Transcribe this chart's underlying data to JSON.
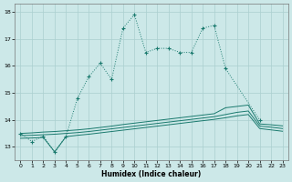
{
  "xlabel": "Humidex (Indice chaleur)",
  "bg_color": "#cce8e8",
  "grid_color": "#aacfcf",
  "line_color": "#1a7a6e",
  "xlim": [
    -0.5,
    23.5
  ],
  "ylim": [
    12.5,
    18.3
  ],
  "yticks": [
    13,
    14,
    15,
    16,
    17,
    18
  ],
  "xticks": [
    0,
    1,
    2,
    3,
    4,
    5,
    6,
    7,
    8,
    9,
    10,
    11,
    12,
    13,
    14,
    15,
    16,
    17,
    18,
    19,
    20,
    21,
    22,
    23
  ],
  "main_x": [
    0,
    1,
    2,
    3,
    4,
    5,
    6,
    7,
    8,
    9,
    10,
    11,
    12,
    13,
    14,
    15,
    16,
    17,
    18,
    21
  ],
  "main_y": [
    13.5,
    13.2,
    13.4,
    12.8,
    13.4,
    14.8,
    15.6,
    16.1,
    15.5,
    17.4,
    17.9,
    16.5,
    16.65,
    16.65,
    16.5,
    16.5,
    17.4,
    17.5,
    15.9,
    14.0
  ],
  "upper_x": [
    0,
    1,
    2,
    3,
    4,
    5,
    6,
    7,
    8,
    9,
    10,
    11,
    12,
    13,
    14,
    15,
    16,
    17,
    18,
    19,
    20,
    21,
    22,
    23
  ],
  "upper_y": [
    13.5,
    13.52,
    13.55,
    13.57,
    13.6,
    13.63,
    13.67,
    13.72,
    13.77,
    13.83,
    13.88,
    13.93,
    13.98,
    14.03,
    14.08,
    14.13,
    14.18,
    14.23,
    14.45,
    14.5,
    14.55,
    13.85,
    13.82,
    13.78
  ],
  "mid_x": [
    0,
    1,
    2,
    3,
    4,
    5,
    6,
    7,
    8,
    9,
    10,
    11,
    12,
    13,
    14,
    15,
    16,
    17,
    18,
    19,
    20,
    21,
    22,
    23
  ],
  "mid_y": [
    13.42,
    13.43,
    13.45,
    13.47,
    13.5,
    13.53,
    13.57,
    13.62,
    13.67,
    13.72,
    13.77,
    13.82,
    13.87,
    13.92,
    13.97,
    14.02,
    14.07,
    14.12,
    14.2,
    14.28,
    14.33,
    13.77,
    13.73,
    13.68
  ],
  "lower_x": [
    0,
    1,
    2,
    3,
    4,
    5,
    6,
    7,
    8,
    9,
    10,
    11,
    12,
    13,
    14,
    15,
    16,
    17,
    18,
    19,
    20,
    21,
    22,
    23
  ],
  "lower_y": [
    13.32,
    13.33,
    13.35,
    12.82,
    13.38,
    13.43,
    13.47,
    13.52,
    13.57,
    13.62,
    13.67,
    13.72,
    13.77,
    13.82,
    13.87,
    13.92,
    13.97,
    14.02,
    14.08,
    14.15,
    14.2,
    13.68,
    13.63,
    13.58
  ]
}
